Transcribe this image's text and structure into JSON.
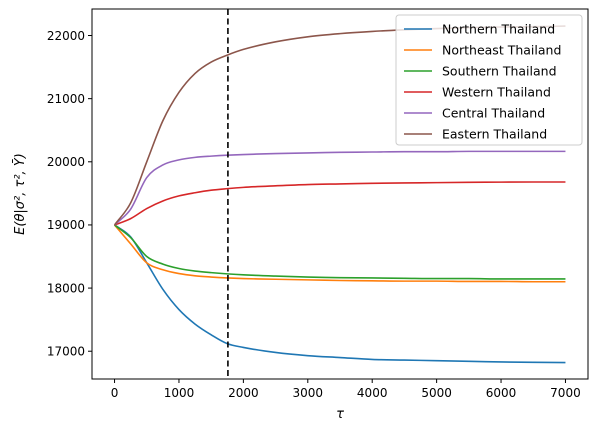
{
  "chart_data": {
    "type": "line",
    "title": "",
    "xlabel": "τ",
    "ylabel": "E(θ|σ², τ², Ȳ)",
    "xlim": [
      -350,
      7350
    ],
    "ylim": [
      16560,
      22420
    ],
    "xticks": [
      0,
      1000,
      2000,
      3000,
      4000,
      5000,
      6000,
      7000
    ],
    "yticks": [
      17000,
      18000,
      19000,
      20000,
      21000,
      22000
    ],
    "grid": false,
    "legend_position": "top-right",
    "vline": {
      "x": 1760,
      "style": "dashed",
      "color": "#000000"
    },
    "series": [
      {
        "name": "Northern Thailand",
        "color": "#1f77b4",
        "x": [
          0,
          250,
          500,
          750,
          1000,
          1250,
          1500,
          1750,
          2000,
          2500,
          3000,
          3500,
          4000,
          4500,
          5000,
          5500,
          6000,
          6500,
          7000
        ],
        "values": [
          19000,
          18810,
          18400,
          17980,
          17660,
          17430,
          17260,
          17120,
          17060,
          16980,
          16930,
          16900,
          16870,
          16860,
          16850,
          16840,
          16830,
          16825,
          16820
        ]
      },
      {
        "name": "Northeast Thailand",
        "color": "#ff7f0e",
        "x": [
          0,
          250,
          500,
          750,
          1000,
          1250,
          1500,
          1750,
          2000,
          2500,
          3000,
          3500,
          4000,
          4500,
          5000,
          5500,
          6000,
          6500,
          7000
        ],
        "values": [
          19000,
          18700,
          18400,
          18290,
          18230,
          18195,
          18175,
          18160,
          18150,
          18140,
          18130,
          18120,
          18115,
          18110,
          18110,
          18105,
          18105,
          18100,
          18100
        ]
      },
      {
        "name": "Southern Thailand",
        "color": "#2ca02c",
        "x": [
          0,
          250,
          500,
          750,
          1000,
          1250,
          1500,
          1750,
          2000,
          2500,
          3000,
          3500,
          4000,
          4500,
          5000,
          5500,
          6000,
          6500,
          7000
        ],
        "values": [
          19000,
          18800,
          18500,
          18380,
          18310,
          18270,
          18245,
          18225,
          18210,
          18190,
          18175,
          18165,
          18160,
          18155,
          18150,
          18150,
          18145,
          18145,
          18145
        ]
      },
      {
        "name": "Western Thailand",
        "color": "#d62728",
        "x": [
          0,
          250,
          500,
          750,
          1000,
          1250,
          1500,
          1750,
          2000,
          2500,
          3000,
          3500,
          4000,
          4500,
          5000,
          5500,
          6000,
          6500,
          7000
        ],
        "values": [
          19000,
          19100,
          19260,
          19380,
          19460,
          19510,
          19550,
          19575,
          19595,
          19620,
          19640,
          19650,
          19660,
          19665,
          19670,
          19675,
          19678,
          19680,
          19680
        ]
      },
      {
        "name": "Central Thailand",
        "color": "#9467bd",
        "x": [
          0,
          250,
          500,
          750,
          1000,
          1250,
          1500,
          1750,
          2000,
          2500,
          3000,
          3500,
          4000,
          4500,
          5000,
          5500,
          6000,
          6500,
          7000
        ],
        "values": [
          19000,
          19250,
          19750,
          19950,
          20030,
          20070,
          20090,
          20105,
          20115,
          20130,
          20140,
          20150,
          20155,
          20160,
          20160,
          20165,
          20165,
          20165,
          20165
        ]
      },
      {
        "name": "Eastern Thailand",
        "color": "#8c564b",
        "x": [
          0,
          250,
          500,
          750,
          1000,
          1250,
          1500,
          1750,
          2000,
          2500,
          3000,
          3500,
          4000,
          4500,
          5000,
          5500,
          6000,
          6500,
          7000
        ],
        "values": [
          19000,
          19350,
          20000,
          20650,
          21100,
          21400,
          21580,
          21690,
          21780,
          21900,
          21980,
          22030,
          22065,
          22090,
          22110,
          22125,
          22135,
          22140,
          22150
        ]
      }
    ]
  }
}
